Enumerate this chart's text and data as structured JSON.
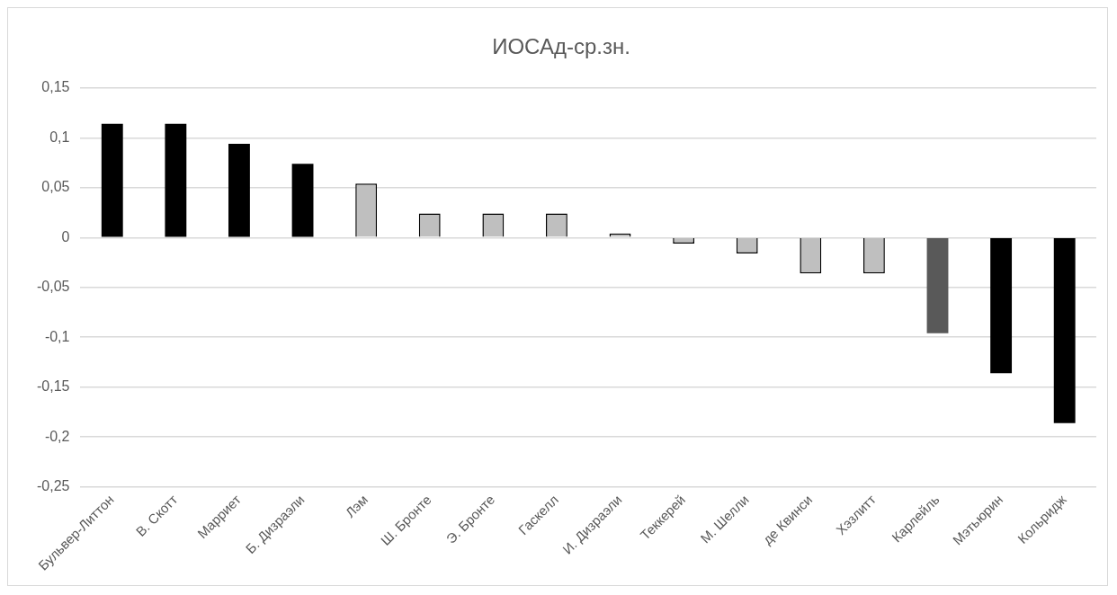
{
  "chart_data": {
    "type": "bar",
    "title": "ИОСАд-ср.зн.",
    "categories": [
      "Бульвер-Литтон",
      "В. Скотт",
      "Марриет",
      "Б. Дизраэли",
      "Лэм",
      "Ш. Бронте",
      "Э. Бронте",
      "Гаскелл",
      "И. Дизраэли",
      "Теккерей",
      "М. Шелли",
      "де Квинси",
      "Хэзлитт",
      "Карлейль",
      "Мэтьюрин",
      "Кольридж"
    ],
    "values": [
      0.114,
      0.114,
      0.094,
      0.074,
      0.054,
      0.024,
      0.024,
      0.024,
      0.004,
      -0.006,
      -0.016,
      -0.036,
      -0.036,
      -0.096,
      -0.136,
      -0.186
    ],
    "colors": [
      "#000000",
      "#000000",
      "#000000",
      "#000000",
      "#bfbfbf",
      "#bfbfbf",
      "#bfbfbf",
      "#bfbfbf",
      "#bfbfbf",
      "#bfbfbf",
      "#bfbfbf",
      "#bfbfbf",
      "#bfbfbf",
      "#595959",
      "#000000",
      "#000000"
    ],
    "ylim": [
      -0.25,
      0.15
    ],
    "yticks": [
      {
        "value": -0.25,
        "label": "-0,25"
      },
      {
        "value": -0.2,
        "label": "-0,2"
      },
      {
        "value": -0.15,
        "label": "-0,15"
      },
      {
        "value": -0.1,
        "label": "-0,1"
      },
      {
        "value": -0.05,
        "label": "-0,05"
      },
      {
        "value": 0,
        "label": "0"
      },
      {
        "value": 0.05,
        "label": "0,05"
      },
      {
        "value": 0.1,
        "label": "0,1"
      },
      {
        "value": 0.15,
        "label": "0,15"
      }
    ],
    "grid": "y",
    "legend": false
  }
}
